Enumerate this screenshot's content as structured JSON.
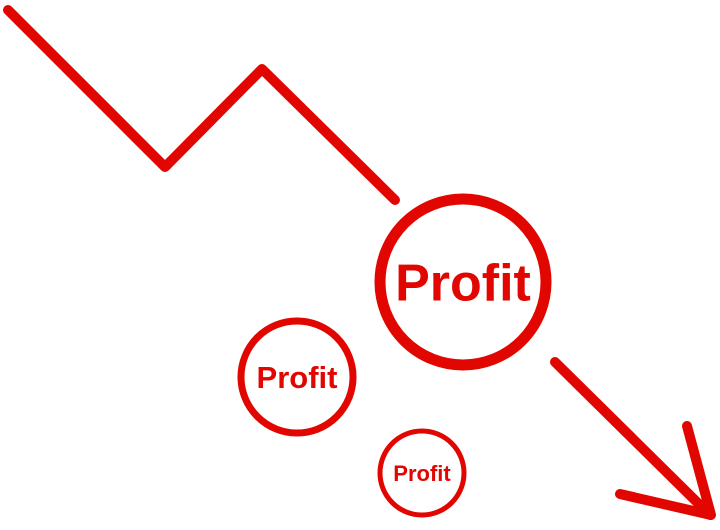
{
  "colors": {
    "accent": "#e10600",
    "background": "#ffffff"
  },
  "badges": {
    "large": {
      "label": "Profit"
    },
    "medium": {
      "label": "Profit"
    },
    "small": {
      "label": "Profit"
    }
  },
  "icons": {
    "trend": "downward-trend-line-icon",
    "arrow": "down-right-arrow-icon"
  }
}
